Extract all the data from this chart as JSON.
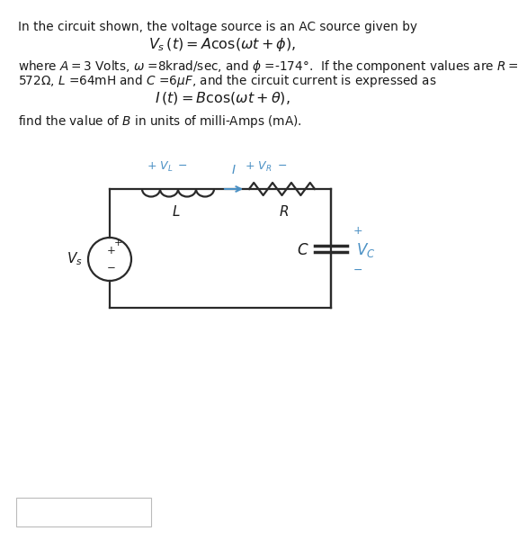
{
  "bg_color": "#ffffff",
  "text_color": "#1a1a1a",
  "blue_color": "#4a90c4",
  "circuit_color": "#2a2a2a",
  "line1": "In the circuit shown, the voltage source is an AC source given by",
  "eq1": "$V_s\\,(t) = A\\mathrm{cos}(\\omega t + \\phi),$",
  "line3a": "where $A = 3$ Volts, $\\omega$ =8krad/sec, and $\\phi$ =-174°.  If the component values are $R =$",
  "line3b": "572Ω, $L$ =64mH and $C$ =6$\\mu F$, and the circuit current is expressed as",
  "eq2": "$I\\,(t) = B\\mathrm{cos}(\\omega t + \\theta),$",
  "line5": "find the value of $B$ in units of milli-Amps (mA).",
  "fs_body": 9.8,
  "fs_eq": 11.5
}
